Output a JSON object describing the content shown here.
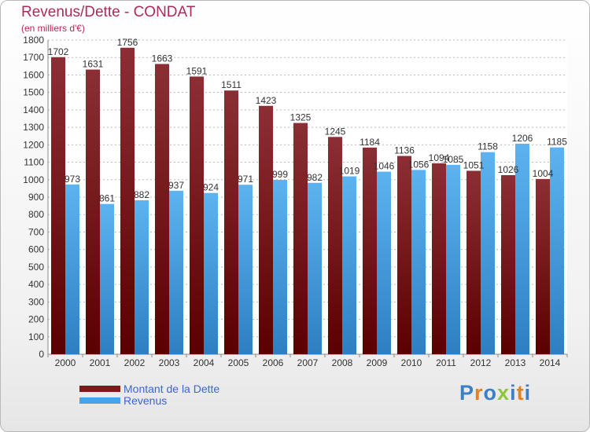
{
  "title": "Revenus/Dette - CONDAT",
  "subtitle": "(en milliers d'€)",
  "legend": {
    "items": [
      {
        "label": "Montant de la Dette",
        "color": "#7a1a1a"
      },
      {
        "label": "Revenus",
        "color": "#4aa3e6"
      }
    ]
  },
  "logo": {
    "text": "Proxiti",
    "letter_colors": [
      "#3d7fc6",
      "#e57f21",
      "#3d7fc6",
      "#8fc43d",
      "#3d7fc6",
      "#e57f21",
      "#3d7fc6"
    ]
  },
  "colors": {
    "dette": "#7a1a1a",
    "revenus": "#4aa3e6",
    "axis_text": "#333333",
    "grid": "#bbbbbb"
  },
  "chart_data": {
    "type": "bar",
    "title": "Revenus/Dette - CONDAT",
    "subtitle": "(en milliers d'€)",
    "categories": [
      "2000",
      "2001",
      "2002",
      "2003",
      "2004",
      "2005",
      "2006",
      "2007",
      "2008",
      "2009",
      "2010",
      "2011",
      "2012",
      "2013",
      "2014"
    ],
    "series": [
      {
        "name": "Montant de la Dette",
        "values": [
          1702,
          1631,
          1756,
          1663,
          1591,
          1511,
          1423,
          1325,
          1245,
          1184,
          1136,
          1094,
          1051,
          1026,
          1004
        ]
      },
      {
        "name": "Revenus",
        "values": [
          973,
          861,
          882,
          937,
          924,
          971,
          999,
          982,
          1019,
          1046,
          1056,
          1085,
          1158,
          1206,
          1185
        ]
      }
    ],
    "labels": [
      [
        "1702",
        "1631",
        "1756",
        "1663",
        "1591",
        "1511",
        "1423",
        "1325",
        "1245",
        "1184",
        "1136",
        "1094",
        "1051",
        "1026",
        "1004"
      ],
      [
        "973",
        "861",
        "882",
        "937",
        "924",
        "971",
        "999",
        "982",
        "1019",
        "1046",
        "1056",
        "1085",
        "1158",
        "1206",
        "1185"
      ]
    ],
    "ylim": [
      0,
      1800
    ],
    "ytick_step": 100,
    "grid": true,
    "legend_position": "bottom-left"
  }
}
